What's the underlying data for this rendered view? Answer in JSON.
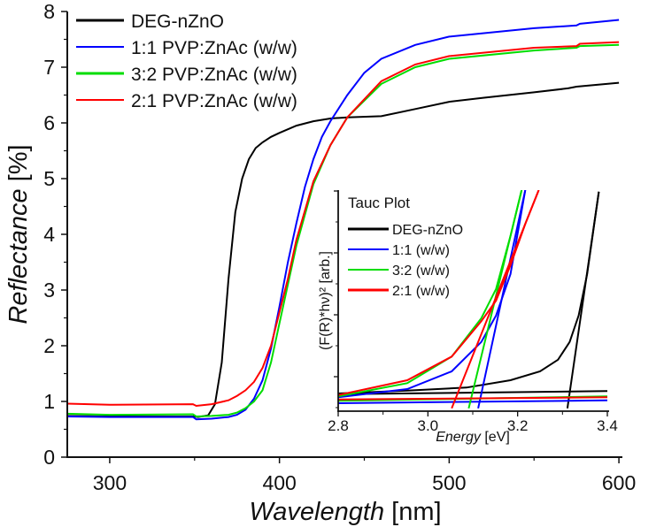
{
  "chart_data": [
    {
      "type": "line",
      "title": "",
      "xlabel_italic": "Wavelength",
      "xlabel_unit": "[nm]",
      "ylabel_italic": "Reflectance",
      "ylabel_unit": "[%]",
      "xlim": [
        275,
        601
      ],
      "ylim": [
        0,
        8
      ],
      "xticks": [
        300,
        400,
        500,
        600
      ],
      "yticks": [
        0,
        1,
        2,
        3,
        4,
        5,
        6,
        7,
        8
      ],
      "legend_position": "top-left",
      "series": [
        {
          "name": "DEG-nZnO",
          "color": "#000000",
          "x": [
            275,
            300,
            350,
            352,
            358,
            362,
            366,
            370,
            374,
            378,
            382,
            386,
            390,
            395,
            400,
            410,
            420,
            430,
            440,
            460,
            480,
            500,
            520,
            550,
            570,
            575,
            600
          ],
          "y": [
            0.74,
            0.73,
            0.73,
            0.72,
            0.75,
            0.95,
            1.7,
            3.2,
            4.4,
            5.0,
            5.35,
            5.55,
            5.65,
            5.75,
            5.82,
            5.95,
            6.03,
            6.08,
            6.1,
            6.12,
            6.25,
            6.38,
            6.45,
            6.55,
            6.62,
            6.65,
            6.72
          ]
        },
        {
          "name": "1:1 PVP:ZnAc (w/w)",
          "color": "#0000ff",
          "x": [
            275,
            300,
            349,
            351,
            360,
            370,
            375,
            380,
            385,
            390,
            395,
            400,
            405,
            410,
            415,
            420,
            425,
            430,
            440,
            450,
            460,
            480,
            500,
            550,
            575,
            577,
            600
          ],
          "y": [
            0.73,
            0.72,
            0.72,
            0.68,
            0.69,
            0.72,
            0.76,
            0.85,
            1.05,
            1.38,
            1.95,
            2.7,
            3.5,
            4.2,
            4.85,
            5.35,
            5.75,
            6.03,
            6.5,
            6.9,
            7.15,
            7.4,
            7.55,
            7.7,
            7.75,
            7.78,
            7.85
          ]
        },
        {
          "name": "3:2 PVP:ZnAc (w/w)",
          "color": "#00dd00",
          "x": [
            275,
            300,
            349,
            351,
            360,
            370,
            375,
            380,
            385,
            390,
            395,
            400,
            405,
            410,
            420,
            430,
            440,
            460,
            480,
            500,
            550,
            575,
            577,
            600
          ],
          "y": [
            0.78,
            0.76,
            0.77,
            0.73,
            0.74,
            0.76,
            0.8,
            0.88,
            1.0,
            1.2,
            1.7,
            2.4,
            3.1,
            3.8,
            4.9,
            5.6,
            6.1,
            6.7,
            7.0,
            7.15,
            7.3,
            7.35,
            7.38,
            7.4
          ]
        },
        {
          "name": "2:1 PVP:ZnAc (w/w)",
          "color": "#ff0000",
          "x": [
            275,
            300,
            349,
            351,
            360,
            370,
            375,
            380,
            385,
            390,
            395,
            400,
            405,
            410,
            420,
            430,
            440,
            460,
            480,
            500,
            550,
            575,
            577,
            600
          ],
          "y": [
            0.96,
            0.94,
            0.95,
            0.92,
            0.95,
            1.02,
            1.1,
            1.2,
            1.35,
            1.6,
            2.0,
            2.6,
            3.2,
            3.9,
            4.95,
            5.6,
            6.1,
            6.75,
            7.05,
            7.2,
            7.35,
            7.38,
            7.42,
            7.45
          ]
        }
      ]
    },
    {
      "type": "line",
      "title": "Tauc Plot",
      "xlabel_italic": "Energy",
      "xlabel_unit": "[eV]",
      "ylabel": "(F(R)*hν)² [arb.]",
      "xlim": [
        2.8,
        3.4
      ],
      "ylim": [
        0,
        1
      ],
      "xticks": [
        "2.8",
        "3.0",
        "3.2",
        "3.4"
      ],
      "ytick_values": [
        0.156,
        0.436,
        0.716,
        0.996
      ],
      "legend_position": "top-left",
      "series": [
        {
          "name": "DEG-nZnO",
          "color": "#000000",
          "curve": {
            "x": [
              2.8,
              2.954,
              3.086,
              3.184,
              3.25,
              3.29,
              3.316,
              3.336,
              3.355,
              3.381
            ],
            "y": [
              0.08,
              0.093,
              0.107,
              0.14,
              0.18,
              0.233,
              0.313,
              0.433,
              0.62,
              0.993
            ]
          },
          "baseline": {
            "x": [
              2.8,
              3.4
            ],
            "y": [
              0.077,
              0.091
            ]
          },
          "tangent": {
            "x": [
              3.311,
              3.381
            ],
            "y": [
              0.013,
              0.993
            ]
          }
        },
        {
          "name": "1:1 (w/w)",
          "color": "#0000ff",
          "curve": {
            "x": [
              2.8,
              2.954,
              3.053,
              3.119,
              3.152,
              3.184,
              3.217
            ],
            "y": [
              0.063,
              0.1,
              0.18,
              0.313,
              0.433,
              0.62,
              1.0
            ]
          },
          "baseline": {
            "x": [
              2.8,
              3.4
            ],
            "y": [
              0.036,
              0.049
            ]
          },
          "tangent": {
            "x": [
              3.112,
              3.217
            ],
            "y": [
              0.013,
              1.0
            ]
          }
        },
        {
          "name": "3:2 (w/w)",
          "color": "#00dd00",
          "curve": {
            "x": [
              2.8,
              2.954,
              3.053,
              3.119,
              3.152,
              3.184,
              3.209
            ],
            "y": [
              0.067,
              0.127,
              0.247,
              0.42,
              0.553,
              0.793,
              1.0
            ]
          },
          "baseline": {
            "x": [
              2.8,
              3.4
            ],
            "y": [
              0.047,
              0.067
            ]
          },
          "tangent": {
            "x": [
              3.091,
              3.209
            ],
            "y": [
              0.013,
              1.0
            ]
          }
        },
        {
          "name": "2:1 (w/w)",
          "color": "#ff0000",
          "curve": {
            "x": [
              2.8,
              2.954,
              3.053,
              3.119,
              3.152,
              3.184,
              3.217,
              3.247
            ],
            "y": [
              0.073,
              0.14,
              0.247,
              0.407,
              0.5,
              0.66,
              0.847,
              1.0
            ]
          },
          "baseline": {
            "x": [
              2.8,
              3.4
            ],
            "y": [
              0.053,
              0.063
            ]
          },
          "tangent": {
            "x": [
              3.053,
              3.247
            ],
            "y": [
              0.013,
              1.0
            ]
          }
        }
      ]
    }
  ]
}
